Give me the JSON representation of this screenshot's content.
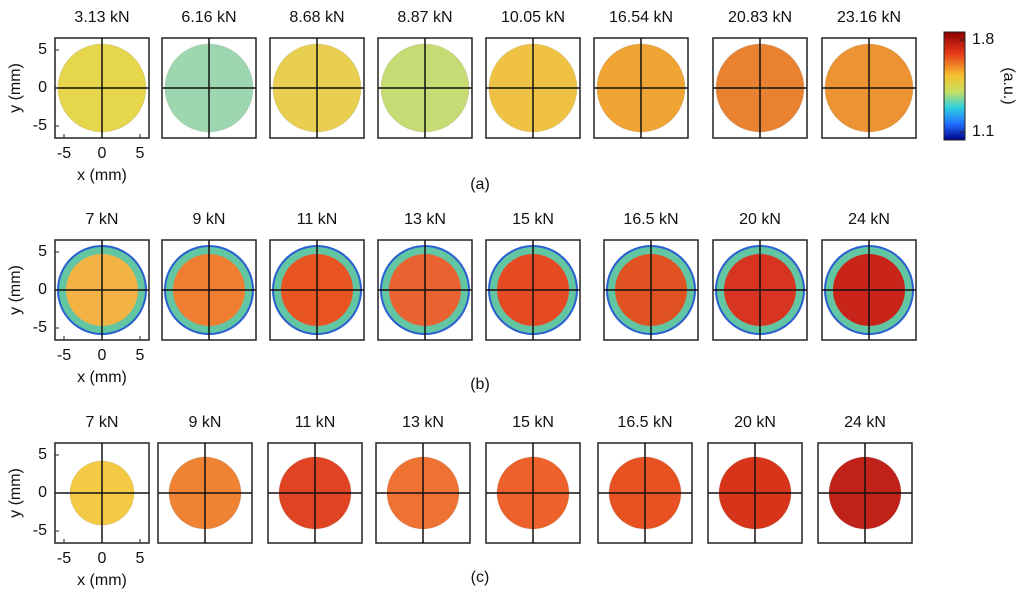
{
  "rows": [
    {
      "label": "(a)",
      "titles": [
        "3.13 kN",
        "6.16 kN",
        "8.68 kN",
        "8.87 kN",
        "10.05 kN",
        "16.54 kN",
        "20.83 kN",
        "23.16 kN"
      ],
      "colors": [
        "#e6d64c",
        "#9ed6b0",
        "#e8cf52",
        "#c6db74",
        "#f0c244",
        "#f0a434",
        "#e98230",
        "#ec9434"
      ]
    },
    {
      "label": "(b)",
      "titles": [
        "7 kN",
        "9 kN",
        "11 kN",
        "13 kN",
        "15 kN",
        "16.5 kN",
        "20 kN",
        "24 kN"
      ],
      "colors": [
        "#f2b244",
        "#f07e32",
        "#e85422",
        "#e86232",
        "#e64a22",
        "#e05222",
        "#d83422",
        "#c8241a"
      ],
      "ring_color": "#62c6a2"
    },
    {
      "label": "(c)",
      "titles": [
        "7 kN",
        "9 kN",
        "11 kN",
        "13 kN",
        "15 kN",
        "16.5 kN",
        "20 kN",
        "24 kN"
      ],
      "colors": [
        "#f4ca44",
        "#f08234",
        "#e04422",
        "#ee7232",
        "#ec622a",
        "#e85222",
        "#d8341a",
        "#c0221a"
      ]
    }
  ],
  "axes": {
    "xlabel": "x (mm)",
    "ylabel": "y (mm)",
    "xticks": [
      -5,
      0,
      5
    ],
    "yticks": [
      5,
      0,
      -5
    ]
  },
  "colorbar": {
    "label": "(a.u.)",
    "ticks": [
      1.8,
      1.1
    ],
    "lim": [
      1.1,
      1.8
    ]
  }
}
